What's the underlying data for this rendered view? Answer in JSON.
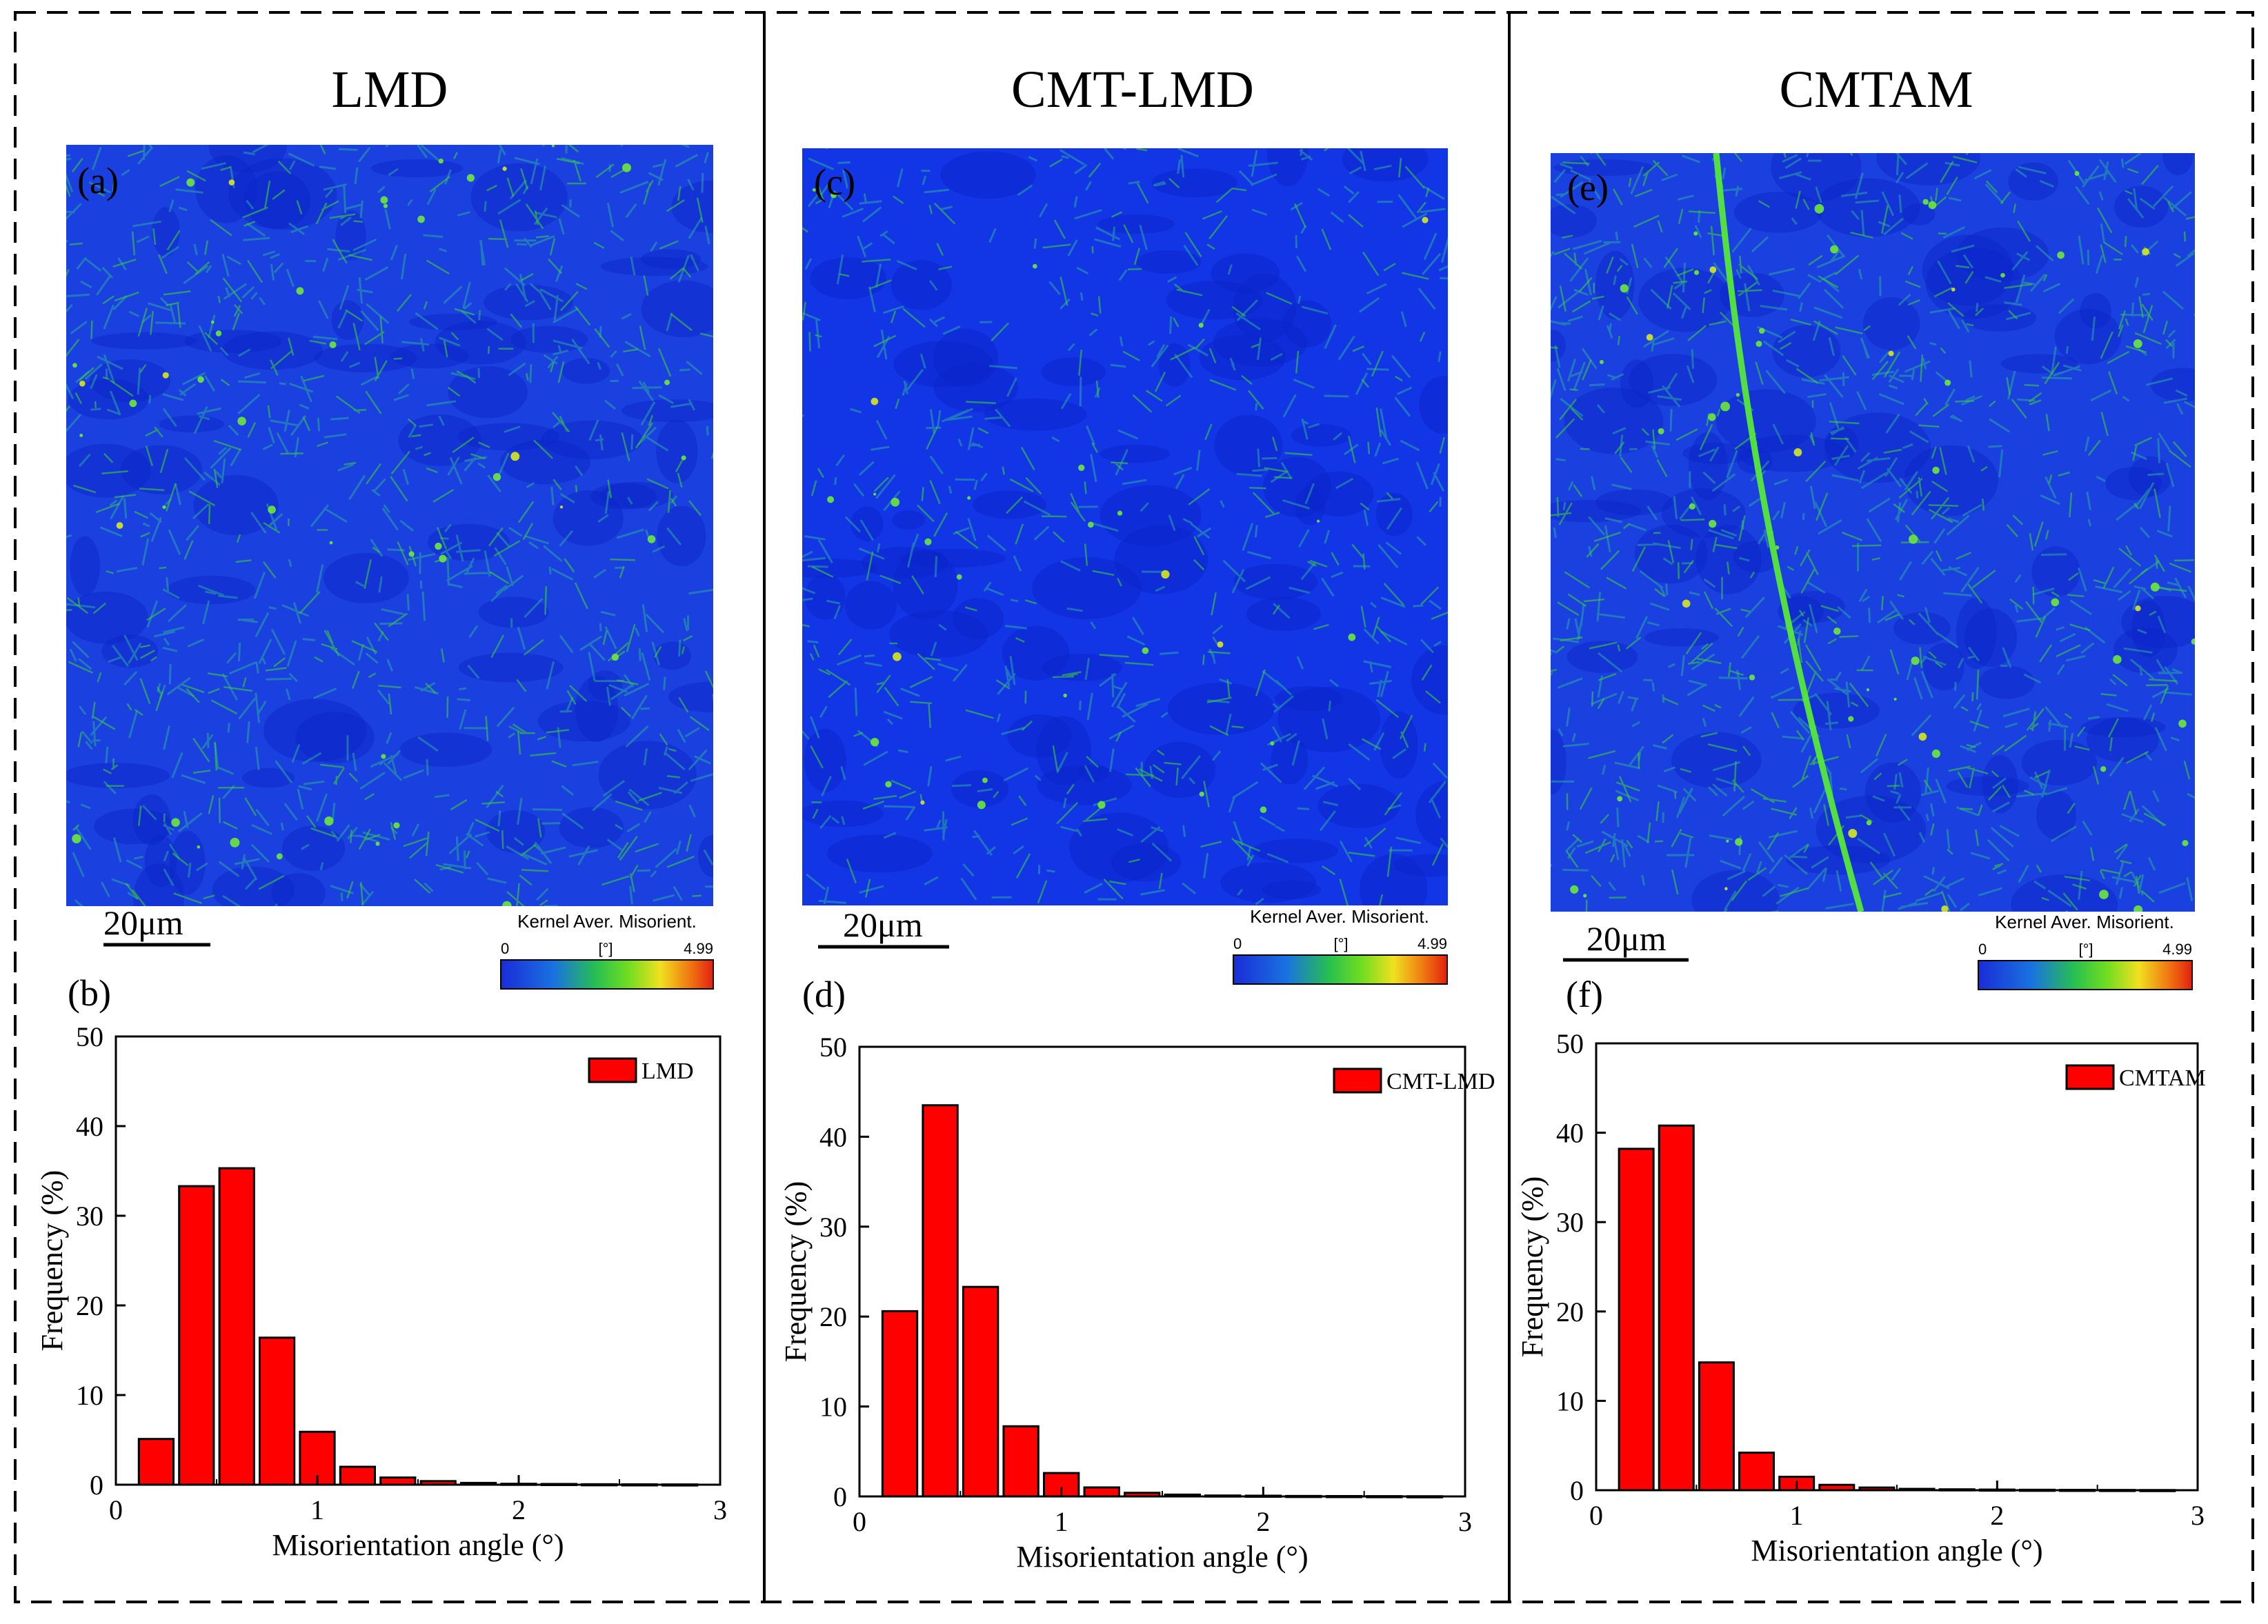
{
  "panels": [
    {
      "title": "LMD",
      "map_label": "(a)",
      "scale_label": "20μm",
      "colorbar": {
        "title": "Kernel Aver. Misorient.",
        "min": "0",
        "unit": "[°]",
        "max": "4.99"
      },
      "map_style": {
        "base": "#1a40e0",
        "density": 0.55,
        "hotspots": 0.5
      }
    },
    {
      "title": "CMT-LMD",
      "map_label": "(c)",
      "scale_label": "20μm",
      "colorbar": {
        "title": "Kernel Aver. Misorient.",
        "min": "0",
        "unit": "[°]",
        "max": "4.99"
      },
      "map_style": {
        "base": "#1236e6",
        "density": 0.38,
        "hotspots": 0.35
      }
    },
    {
      "title": "CMTAM",
      "map_label": "(e)",
      "scale_label": "20μm",
      "colorbar": {
        "title": "Kernel Aver. Misorient.",
        "min": "0",
        "unit": "[°]",
        "max": "4.99"
      },
      "map_style": {
        "base": "#1a40e0",
        "density": 0.6,
        "hotspots": 0.65
      },
      "has_boundary_line": true
    }
  ],
  "colors": {
    "bar_fill": "#ff0000",
    "bar_stroke": "#000000",
    "map_green": "#3ccc3c",
    "map_yellow": "#d8e820"
  },
  "chart_data": [
    {
      "type": "bar",
      "panel_label": "(b)",
      "series": [
        {
          "name": "LMD",
          "x": [
            0.2,
            0.4,
            0.6,
            0.8,
            1.0,
            1.2,
            1.4,
            1.6,
            1.8,
            2.0,
            2.2,
            2.4,
            2.6,
            2.8
          ],
          "values": [
            5.1,
            33.3,
            35.3,
            16.4,
            5.9,
            2.0,
            0.8,
            0.4,
            0.2,
            0.1,
            0.08,
            0.05,
            0.04,
            0.03
          ]
        }
      ],
      "xlabel": "Misorientation angle (°)",
      "ylabel": "Frequency (%)",
      "xlim": [
        0,
        3
      ],
      "ylim": [
        0,
        50
      ],
      "xticks": [
        0,
        1,
        2,
        3
      ],
      "yticks": [
        0,
        10,
        20,
        30,
        40,
        50
      ],
      "legend": "top-right",
      "grid": false
    },
    {
      "type": "bar",
      "panel_label": "(d)",
      "series": [
        {
          "name": "CMT-LMD",
          "x": [
            0.2,
            0.4,
            0.6,
            0.8,
            1.0,
            1.2,
            1.4,
            1.6,
            1.8,
            2.0,
            2.2,
            2.4,
            2.6,
            2.8
          ],
          "values": [
            20.6,
            43.5,
            23.3,
            7.8,
            2.6,
            1.0,
            0.4,
            0.2,
            0.1,
            0.08,
            0.05,
            0.04,
            0.03,
            0.02
          ]
        }
      ],
      "xlabel": "Misorientation angle (°)",
      "ylabel": "Frequency (%)",
      "xlim": [
        0,
        3
      ],
      "ylim": [
        0,
        50
      ],
      "xticks": [
        0,
        1,
        2,
        3
      ],
      "yticks": [
        0,
        10,
        20,
        30,
        40,
        50
      ],
      "legend": "top-right",
      "grid": false
    },
    {
      "type": "bar",
      "panel_label": "(f)",
      "series": [
        {
          "name": "CMTAM",
          "x": [
            0.2,
            0.4,
            0.6,
            0.8,
            1.0,
            1.2,
            1.4,
            1.6,
            1.8,
            2.0,
            2.2,
            2.4,
            2.6,
            2.8
          ],
          "values": [
            38.2,
            40.8,
            14.3,
            4.2,
            1.5,
            0.6,
            0.3,
            0.15,
            0.1,
            0.07,
            0.05,
            0.04,
            0.03,
            0.02
          ]
        }
      ],
      "xlabel": "Misorientation angle (°)",
      "ylabel": "Frequency (%)",
      "xlim": [
        0,
        3
      ],
      "ylim": [
        0,
        50
      ],
      "xticks": [
        0,
        1,
        2,
        3
      ],
      "yticks": [
        0,
        10,
        20,
        30,
        40,
        50
      ],
      "legend": "top-right",
      "grid": false
    }
  ]
}
